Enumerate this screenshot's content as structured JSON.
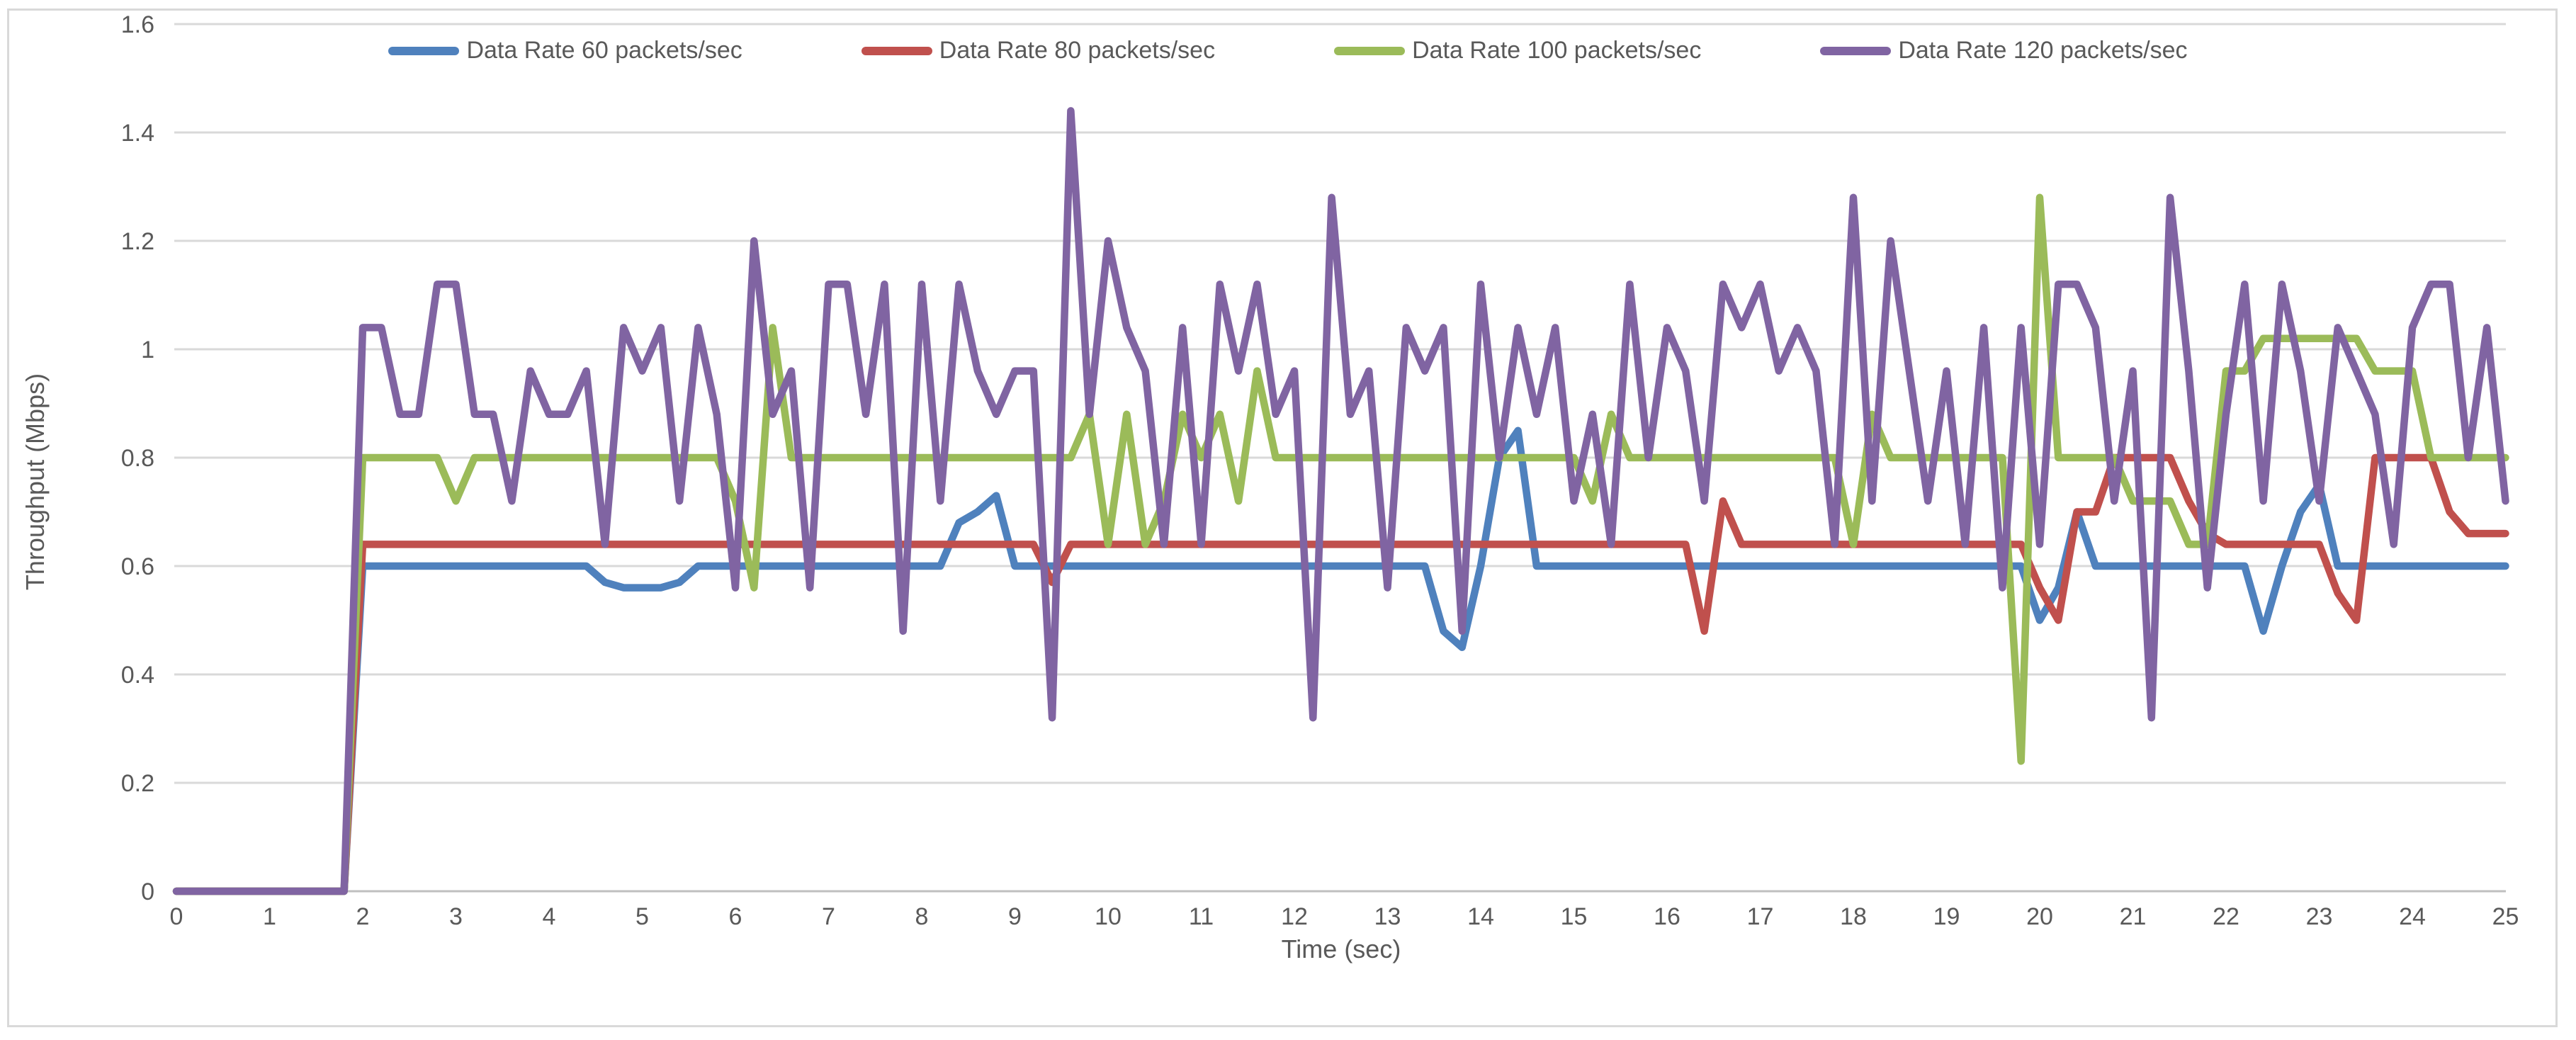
{
  "frame": {
    "background": "#FFFFFF",
    "border_color": "#D9D9D9"
  },
  "text_color": "#595959",
  "chart_data": {
    "type": "line",
    "title": "",
    "xlabel": "Time (sec)",
    "ylabel": "Throughput (Mbps)",
    "xlim": [
      0,
      25
    ],
    "ylim": [
      0,
      1.6
    ],
    "grid": "horizontal-only",
    "grid_color": "#D9D9D9",
    "axis_line_color": "#BFBFBF",
    "legend_position": "top-center",
    "x": {
      "start": 0,
      "step": 0.2,
      "count": 126
    },
    "xticks": [
      0,
      1,
      2,
      3,
      4,
      5,
      6,
      7,
      8,
      9,
      10,
      11,
      12,
      13,
      14,
      15,
      16,
      17,
      18,
      19,
      20,
      21,
      22,
      23,
      24,
      25
    ],
    "yticks": [
      {
        "label": "0",
        "v": 0
      },
      {
        "label": "0.2",
        "v": 0.2
      },
      {
        "label": "0.4",
        "v": 0.4
      },
      {
        "label": "0.6",
        "v": 0.6
      },
      {
        "label": "0.8",
        "v": 0.8
      },
      {
        "label": "1",
        "v": 1.0
      },
      {
        "label": "1.2",
        "v": 1.2
      },
      {
        "label": "1.4",
        "v": 1.4
      },
      {
        "label": "1.6",
        "v": 1.6
      }
    ],
    "series": [
      {
        "name": "Data Rate 60 packets/sec",
        "color": "#4F81BD",
        "values": [
          0,
          0,
          0,
          0,
          0,
          0,
          0,
          0,
          0,
          0,
          0.6,
          0.6,
          0.6,
          0.6,
          0.6,
          0.6,
          0.6,
          0.6,
          0.6,
          0.6,
          0.6,
          0.6,
          0.6,
          0.57,
          0.56,
          0.56,
          0.56,
          0.57,
          0.6,
          0.6,
          0.6,
          0.6,
          0.6,
          0.6,
          0.6,
          0.6,
          0.6,
          0.6,
          0.6,
          0.6,
          0.6,
          0.6,
          0.68,
          0.7,
          0.73,
          0.6,
          0.6,
          0.6,
          0.6,
          0.6,
          0.6,
          0.6,
          0.6,
          0.6,
          0.6,
          0.6,
          0.6,
          0.6,
          0.6,
          0.6,
          0.6,
          0.6,
          0.6,
          0.6,
          0.6,
          0.6,
          0.6,
          0.6,
          0.48,
          0.45,
          0.6,
          0.8,
          0.85,
          0.6,
          0.6,
          0.6,
          0.6,
          0.6,
          0.6,
          0.6,
          0.6,
          0.6,
          0.6,
          0.6,
          0.6,
          0.6,
          0.6,
          0.6,
          0.6,
          0.6,
          0.6,
          0.6,
          0.6,
          0.6,
          0.6,
          0.6,
          0.6,
          0.6,
          0.6,
          0.6,
          0.5,
          0.56,
          0.7,
          0.6,
          0.6,
          0.6,
          0.6,
          0.6,
          0.6,
          0.6,
          0.6,
          0.6,
          0.48,
          0.6,
          0.7,
          0.75,
          0.6,
          0.6,
          0.6,
          0.6,
          0.6,
          0.6,
          0.6,
          0.6,
          0.6,
          0.6
        ]
      },
      {
        "name": "Data Rate 80 packets/sec",
        "color": "#C0504D",
        "values": [
          0,
          0,
          0,
          0,
          0,
          0,
          0,
          0,
          0,
          0,
          0.64,
          0.64,
          0.64,
          0.64,
          0.64,
          0.64,
          0.64,
          0.64,
          0.64,
          0.64,
          0.64,
          0.64,
          0.64,
          0.64,
          0.64,
          0.64,
          0.64,
          0.64,
          0.64,
          0.64,
          0.64,
          0.64,
          0.64,
          0.64,
          0.64,
          0.64,
          0.64,
          0.64,
          0.64,
          0.64,
          0.64,
          0.64,
          0.64,
          0.64,
          0.64,
          0.64,
          0.64,
          0.57,
          0.64,
          0.64,
          0.64,
          0.64,
          0.64,
          0.64,
          0.64,
          0.64,
          0.64,
          0.64,
          0.64,
          0.64,
          0.64,
          0.64,
          0.64,
          0.64,
          0.64,
          0.64,
          0.64,
          0.64,
          0.64,
          0.64,
          0.64,
          0.64,
          0.64,
          0.64,
          0.64,
          0.64,
          0.64,
          0.64,
          0.64,
          0.64,
          0.64,
          0.64,
          0.48,
          0.72,
          0.64,
          0.64,
          0.64,
          0.64,
          0.64,
          0.64,
          0.64,
          0.64,
          0.64,
          0.64,
          0.64,
          0.64,
          0.64,
          0.64,
          0.64,
          0.64,
          0.56,
          0.5,
          0.7,
          0.7,
          0.8,
          0.8,
          0.8,
          0.8,
          0.72,
          0.66,
          0.64,
          0.64,
          0.64,
          0.64,
          0.64,
          0.64,
          0.55,
          0.5,
          0.8,
          0.8,
          0.8,
          0.8,
          0.7,
          0.66,
          0.66,
          0.66
        ]
      },
      {
        "name": "Data Rate 100 packets/sec",
        "color": "#9BBB59",
        "values": [
          0,
          0,
          0,
          0,
          0,
          0,
          0,
          0,
          0,
          0,
          0.8,
          0.8,
          0.8,
          0.8,
          0.8,
          0.72,
          0.8,
          0.8,
          0.8,
          0.8,
          0.8,
          0.8,
          0.8,
          0.8,
          0.8,
          0.8,
          0.8,
          0.8,
          0.8,
          0.8,
          0.72,
          0.56,
          1.04,
          0.8,
          0.8,
          0.8,
          0.8,
          0.8,
          0.8,
          0.8,
          0.8,
          0.8,
          0.8,
          0.8,
          0.8,
          0.8,
          0.8,
          0.8,
          0.8,
          0.88,
          0.64,
          0.88,
          0.64,
          0.72,
          0.88,
          0.8,
          0.88,
          0.72,
          0.96,
          0.8,
          0.8,
          0.8,
          0.8,
          0.8,
          0.8,
          0.8,
          0.8,
          0.8,
          0.8,
          0.8,
          0.8,
          0.8,
          0.8,
          0.8,
          0.8,
          0.8,
          0.72,
          0.88,
          0.8,
          0.8,
          0.8,
          0.8,
          0.8,
          0.8,
          0.8,
          0.8,
          0.8,
          0.8,
          0.8,
          0.8,
          0.64,
          0.88,
          0.8,
          0.8,
          0.8,
          0.8,
          0.8,
          0.8,
          0.8,
          0.24,
          1.28,
          0.8,
          0.8,
          0.8,
          0.8,
          0.72,
          0.72,
          0.72,
          0.64,
          0.64,
          0.96,
          0.96,
          1.02,
          1.02,
          1.02,
          1.02,
          1.02,
          1.02,
          0.96,
          0.96,
          0.96,
          0.8,
          0.8,
          0.8,
          0.8,
          0.8
        ]
      },
      {
        "name": "Data Rate 120 packets/sec",
        "color": "#8064A2",
        "values": [
          0,
          0,
          0,
          0,
          0,
          0,
          0,
          0,
          0,
          0,
          1.04,
          1.04,
          0.88,
          0.88,
          1.12,
          1.12,
          0.88,
          0.88,
          0.72,
          0.96,
          0.88,
          0.88,
          0.96,
          0.64,
          1.04,
          0.96,
          1.04,
          0.72,
          1.04,
          0.88,
          0.56,
          1.2,
          0.88,
          0.96,
          0.56,
          1.12,
          1.12,
          0.88,
          1.12,
          0.48,
          1.12,
          0.72,
          1.12,
          0.96,
          0.88,
          0.96,
          0.96,
          0.32,
          1.44,
          0.88,
          1.2,
          1.04,
          0.96,
          0.64,
          1.04,
          0.64,
          1.12,
          0.96,
          1.12,
          0.88,
          0.96,
          0.32,
          1.28,
          0.88,
          0.96,
          0.56,
          1.04,
          0.96,
          1.04,
          0.48,
          1.12,
          0.8,
          1.04,
          0.88,
          1.04,
          0.72,
          0.88,
          0.64,
          1.12,
          0.8,
          1.04,
          0.96,
          0.72,
          1.12,
          1.04,
          1.12,
          0.96,
          1.04,
          0.96,
          0.64,
          1.28,
          0.72,
          1.2,
          0.96,
          0.72,
          0.96,
          0.64,
          1.04,
          0.56,
          1.04,
          0.64,
          1.12,
          1.12,
          1.04,
          0.72,
          0.96,
          0.32,
          1.28,
          0.96,
          0.56,
          0.88,
          1.12,
          0.72,
          1.12,
          0.96,
          0.72,
          1.04,
          0.96,
          0.88,
          0.64,
          1.04,
          1.12,
          1.12,
          0.8,
          1.04,
          0.72
        ]
      }
    ]
  }
}
